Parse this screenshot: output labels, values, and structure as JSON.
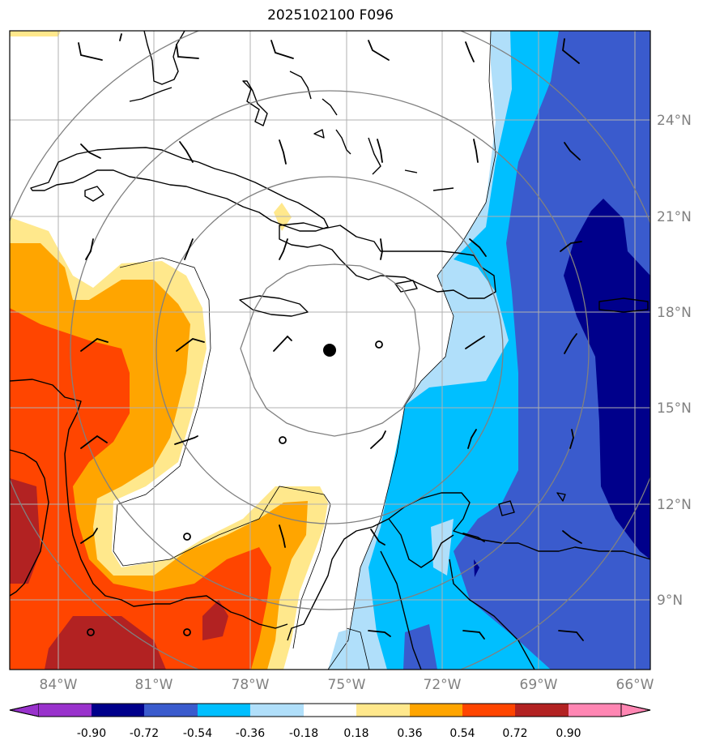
{
  "title": "2025102100 F096",
  "map": {
    "lat_ticks": [
      "24°N",
      "21°N",
      "18°N",
      "15°N",
      "12°N",
      "9°N"
    ],
    "lon_ticks": [
      "84°W",
      "81°W",
      "78°W",
      "75°W",
      "72°W",
      "69°W",
      "66°W"
    ],
    "lon_range": [
      -85.5,
      -65.5
    ],
    "lat_range": [
      7,
      27
    ],
    "storm_center": {
      "lon": -75.3,
      "lat": 16.8
    },
    "grid": true,
    "range_rings": 4
  },
  "colorbar": {
    "levels": [
      "-0.90",
      "-0.72",
      "-0.54",
      "-0.36",
      "-0.18",
      "0.18",
      "0.36",
      "0.54",
      "0.72",
      "0.90"
    ],
    "colors": [
      "#9932cc",
      "#00008b",
      "#3a5bcd",
      "#00bfff",
      "#b0dffa",
      "#ffffff",
      "#ffe88c",
      "#ffa500",
      "#ff4500",
      "#b22222",
      "#ff86b3"
    ],
    "extend": "both"
  }
}
